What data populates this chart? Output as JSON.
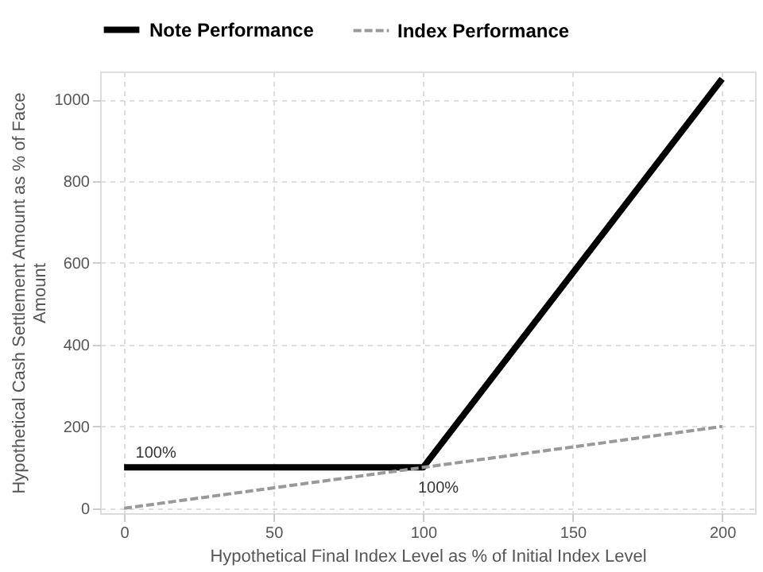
{
  "chart_data": {
    "type": "line",
    "x": [
      0,
      100,
      200
    ],
    "series": [
      {
        "name": "Note Performance",
        "color": "#000000",
        "values": [
          100,
          100,
          1050
        ],
        "line_style": "solid"
      },
      {
        "name": "Index Performance",
        "color": "#999999",
        "values": [
          0,
          100,
          200
        ],
        "line_style": "dashed"
      }
    ],
    "xlabel": "Hypothetical Final Index Level as % of Initial Index Level",
    "ylabel": "Hypothetical Cash Settlement Amount as % of Face Amount",
    "xlim": [
      -8,
      211
    ],
    "ylim": [
      -12,
      1068
    ],
    "xticks": [
      0,
      50,
      100,
      150,
      200
    ],
    "yticks": [
      0,
      200,
      400,
      600,
      800,
      1000
    ],
    "grid": true,
    "legend": "top",
    "marker": "none",
    "annotations": [
      {
        "text": "100%",
        "x": 0,
        "y": 100
      },
      "100%"
    ]
  }
}
